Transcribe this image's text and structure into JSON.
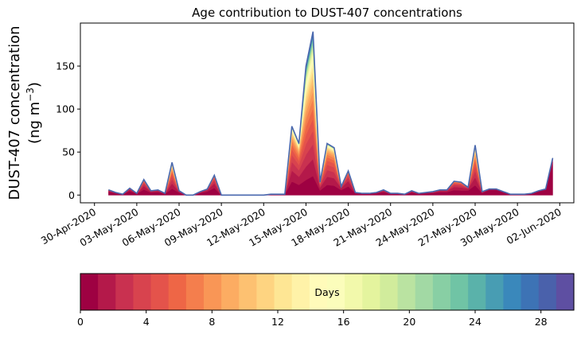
{
  "chart_data": {
    "type": "area",
    "title": "Age contribution to DUST-407 concentrations",
    "ylabel_line1": "DUST-407 concentration",
    "ylabel_line2": "(ng m",
    "ylabel_unit_sup": "−3",
    "ylabel_close": ")",
    "xlim_day": [
      -1,
      34
    ],
    "ylim": [
      -9,
      200
    ],
    "y_ticks": [
      "0",
      "50",
      "100",
      "150"
    ],
    "x_ticks": [
      "30-Apr-2020",
      "03-May-2020",
      "06-May-2020",
      "09-May-2020",
      "12-May-2020",
      "15-May-2020",
      "18-May-2020",
      "21-May-2020",
      "24-May-2020",
      "27-May-2020",
      "30-May-2020",
      "02-Jun-2020"
    ],
    "x_start_date": "30-Apr-2020",
    "x_step_days": 3,
    "totals_x_start": "01-May-2020",
    "totals_step_days": 0.5,
    "totals": [
      6,
      3,
      1,
      8,
      2,
      18,
      5,
      6,
      2,
      38,
      5,
      0,
      0,
      4,
      7,
      23,
      0,
      0,
      0,
      0,
      0,
      0,
      0,
      1,
      1,
      1,
      80,
      60,
      150,
      190,
      15,
      60,
      55,
      10,
      28,
      3,
      2,
      2,
      3,
      6,
      2,
      2,
      1,
      5,
      2,
      3,
      4,
      6,
      6,
      16,
      15,
      9,
      58,
      4,
      7,
      7,
      4,
      1,
      1,
      1,
      2,
      5,
      7,
      43
    ],
    "colorbar": {
      "label": "Days",
      "min": 0,
      "max": 30,
      "ticks": [
        "0",
        "4",
        "8",
        "12",
        "16",
        "20",
        "24",
        "28"
      ],
      "colors": [
        "#9e0142",
        "#b4194a",
        "#c93150",
        "#d8434e",
        "#e4534b",
        "#ee6646",
        "#f47e4d",
        "#f99656",
        "#fcac62",
        "#fdc171",
        "#fed481",
        "#fee694",
        "#fff2a8",
        "#fffbba",
        "#fbfdbb",
        "#f2f9ab",
        "#e4f49e",
        "#d1ec9c",
        "#bae3a1",
        "#a2d9a4",
        "#88cfa4",
        "#70c4a5",
        "#5ab2aa",
        "#489db3",
        "#3a88bb",
        "#3d73b5",
        "#4a61ab",
        "#5e4fa2"
      ]
    }
  }
}
